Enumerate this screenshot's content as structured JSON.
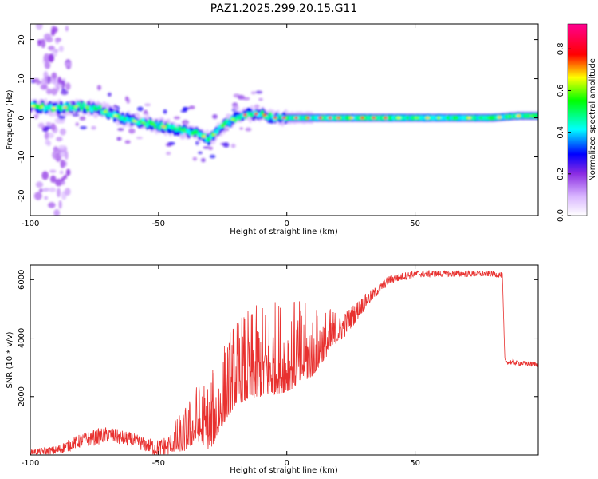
{
  "page_title": "PAZ1.2025.299.20.15.G11",
  "chart_data": [
    {
      "type": "heatmap",
      "title": "PAZ1.2025.299.20.15.G11",
      "xlabel": "Height of straight line (km)",
      "ylabel": "Frequency (Hz)",
      "xlim": [
        -100,
        98
      ],
      "ylim": [
        -25,
        24
      ],
      "xticks": [
        -100,
        -50,
        0,
        50
      ],
      "yticks": [
        -20,
        -10,
        0,
        10,
        20
      ],
      "colorbar": {
        "label": "Normalized spectral amplitude",
        "range": [
          0,
          0.92
        ],
        "ticks": [
          0.0,
          0.2,
          0.4,
          0.6,
          0.8
        ]
      },
      "ridge": {
        "description": "dominant frequency track vs height",
        "x": [
          -100,
          -90,
          -80,
          -72,
          -65,
          -58,
          -50,
          -42,
          -35,
          -30,
          -25,
          -20,
          -15,
          -10,
          -5,
          0,
          10,
          20,
          30,
          40,
          50,
          60,
          70,
          80,
          90,
          98
        ],
        "y": [
          3,
          2.5,
          3,
          2,
          0,
          -1,
          -2,
          -3,
          -4,
          -5.5,
          -2,
          0,
          1,
          1,
          0,
          0,
          0,
          0,
          0,
          0,
          0,
          0,
          0,
          0,
          0.5,
          0.5
        ]
      },
      "scatter_band": {
        "description": "low-amplitude speckle near x=-90 across all frequencies",
        "x_center": -91,
        "amplitude": 0.15
      }
    },
    {
      "type": "line",
      "title": "",
      "xlabel": "Height of straight line (km)",
      "ylabel": "SNR (10 * v/v)",
      "xlim": [
        -100,
        98
      ],
      "ylim": [
        0,
        6500
      ],
      "xticks": [
        -100,
        -50,
        0,
        50
      ],
      "yticks": [
        2000,
        4000,
        6000
      ],
      "color": "#e8312f",
      "trend": {
        "x": [
          -100,
          -90,
          -80,
          -70,
          -60,
          -50,
          -40,
          -35,
          -30,
          -25,
          -20,
          -10,
          0,
          10,
          20,
          30,
          40,
          50,
          60,
          70,
          80,
          84,
          85,
          90,
          98
        ],
        "y": [
          100,
          150,
          500,
          700,
          500,
          200,
          500,
          1000,
          800,
          1700,
          2500,
          2800,
          3000,
          3300,
          4200,
          5200,
          6000,
          6200,
          6200,
          6200,
          6200,
          6150,
          3200,
          3150,
          3100
        ]
      },
      "noise_amplitude": {
        "x": [
          -100,
          -75,
          -55,
          -45,
          -30,
          -20,
          -10,
          0,
          10,
          20,
          35,
          50,
          98
        ],
        "y": [
          120,
          400,
          350,
          600,
          1600,
          1900,
          2000,
          2100,
          1500,
          700,
          250,
          180,
          120
        ]
      }
    }
  ]
}
